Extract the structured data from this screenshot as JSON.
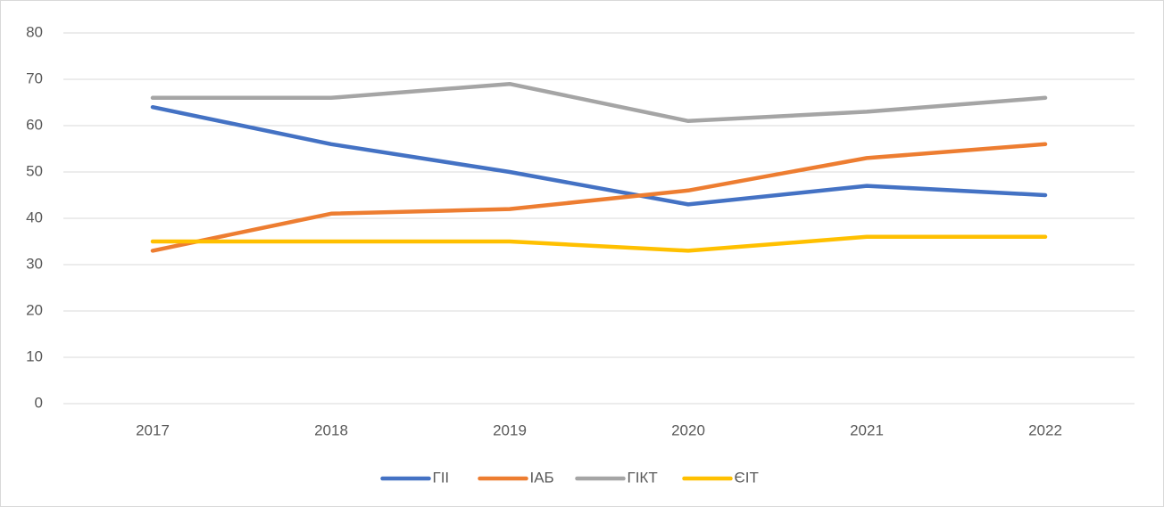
{
  "chart_data": {
    "type": "line",
    "categories": [
      "2017",
      "2018",
      "2019",
      "2020",
      "2021",
      "2022"
    ],
    "series": [
      {
        "name": "ГІІ",
        "color": "#4472c4",
        "values": [
          64,
          56,
          50,
          43,
          47,
          45
        ]
      },
      {
        "name": "ІАБ",
        "color": "#ed7d31",
        "values": [
          33,
          41,
          42,
          46,
          53,
          56
        ]
      },
      {
        "name": "ГІКТ",
        "color": "#a5a5a5",
        "values": [
          66,
          66,
          69,
          61,
          63,
          66
        ]
      },
      {
        "name": "ЄІТ",
        "color": "#ffc000",
        "values": [
          35,
          35,
          35,
          33,
          36,
          36
        ]
      }
    ],
    "ylim": [
      0,
      80
    ],
    "yticks": [
      0,
      10,
      20,
      30,
      40,
      50,
      60,
      70,
      80
    ],
    "grid": true,
    "legend": "bottom"
  }
}
